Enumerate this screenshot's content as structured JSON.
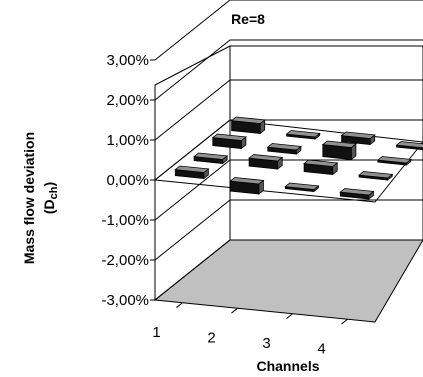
{
  "chart_data": {
    "type": "bar3d",
    "title": "Re=8",
    "xlabel": "Channels",
    "ylabel_line1": "Mass flow deviation",
    "ylabel_line2_main": "(D",
    "ylabel_line2_sub": "ch",
    "ylabel_line2_end": ")",
    "categories": [
      "1",
      "2",
      "3",
      "4"
    ],
    "ytick_labels": [
      "3,00%",
      "2,00%",
      "1,00%",
      "0,00%",
      "-1,00%",
      "-2,00%",
      "-3,00%"
    ],
    "ylim": [
      -3,
      3
    ],
    "rows": 4,
    "columns": 4,
    "grid": true,
    "floor_color": "#c0c0c0",
    "bar_top_color": "#909090",
    "bar_front_color": "#111111",
    "bars": [
      {
        "row": 0,
        "col": 0,
        "value": 0.15
      },
      {
        "row": 0,
        "col": 1,
        "value": -0.25
      },
      {
        "row": 0,
        "col": 2,
        "value": -0.05
      },
      {
        "row": 0,
        "col": 3,
        "value": -0.1
      },
      {
        "row": 1,
        "col": 0,
        "value": 0.1
      },
      {
        "row": 1,
        "col": 1,
        "value": 0.2
      },
      {
        "row": 1,
        "col": 2,
        "value": 0.2
      },
      {
        "row": 1,
        "col": 3,
        "value": 0.05
      },
      {
        "row": 2,
        "col": 0,
        "value": 0.2
      },
      {
        "row": 2,
        "col": 1,
        "value": 0.1
      },
      {
        "row": 2,
        "col": 2,
        "value": 0.3
      },
      {
        "row": 2,
        "col": 3,
        "value": 0.05
      },
      {
        "row": 3,
        "col": 0,
        "value": 0.25
      },
      {
        "row": 3,
        "col": 1,
        "value": 0.05
      },
      {
        "row": 3,
        "col": 2,
        "value": 0.15
      },
      {
        "row": 3,
        "col": 3,
        "value": 0.05
      }
    ]
  }
}
